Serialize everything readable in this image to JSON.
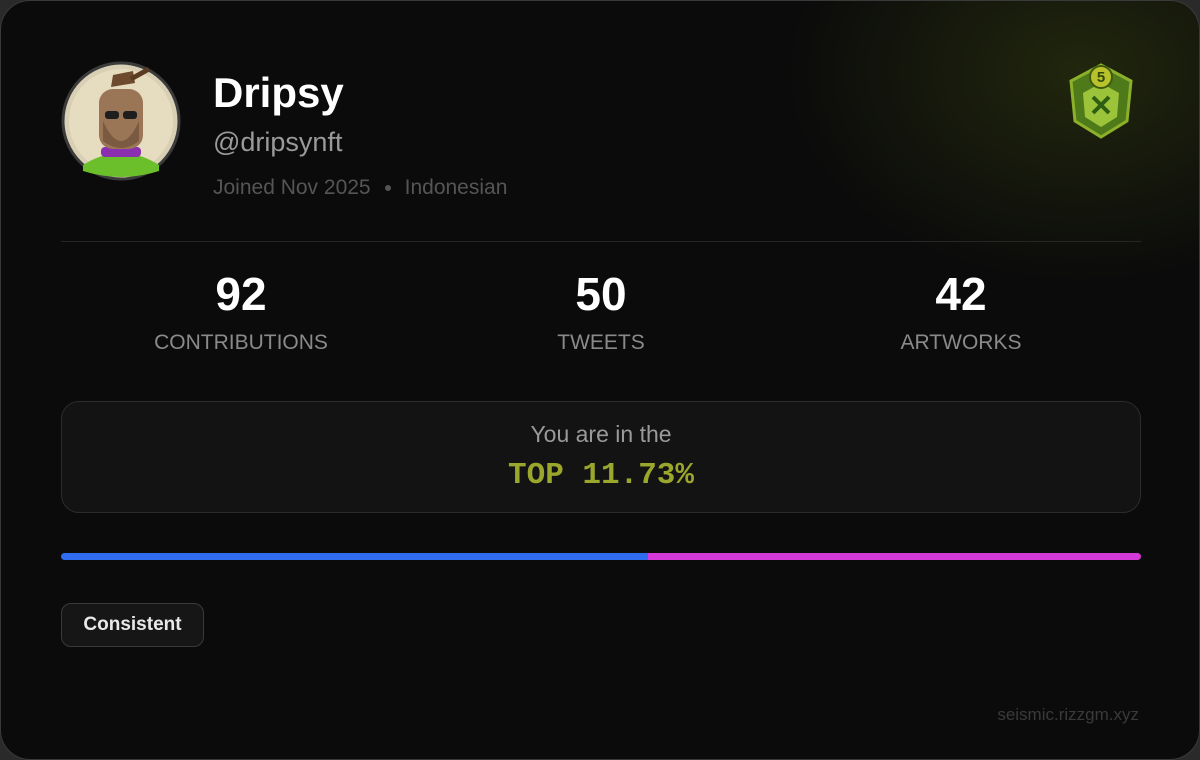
{
  "profile": {
    "name": "Dripsy",
    "handle": "@dripsynft",
    "joined": "Joined Nov 2025",
    "nationality": "Indonesian",
    "badge_level": "5"
  },
  "stats": [
    {
      "value": 92,
      "label": "CONTRIBUTIONS"
    },
    {
      "value": 50,
      "label": "TWEETS"
    },
    {
      "value": 42,
      "label": "ARTWORKS"
    }
  ],
  "rank": {
    "intro": "You are in the",
    "text": "TOP 11.73%"
  },
  "tags": [
    "Consistent"
  ],
  "footer": "seismic.rizzgm.xyz"
}
